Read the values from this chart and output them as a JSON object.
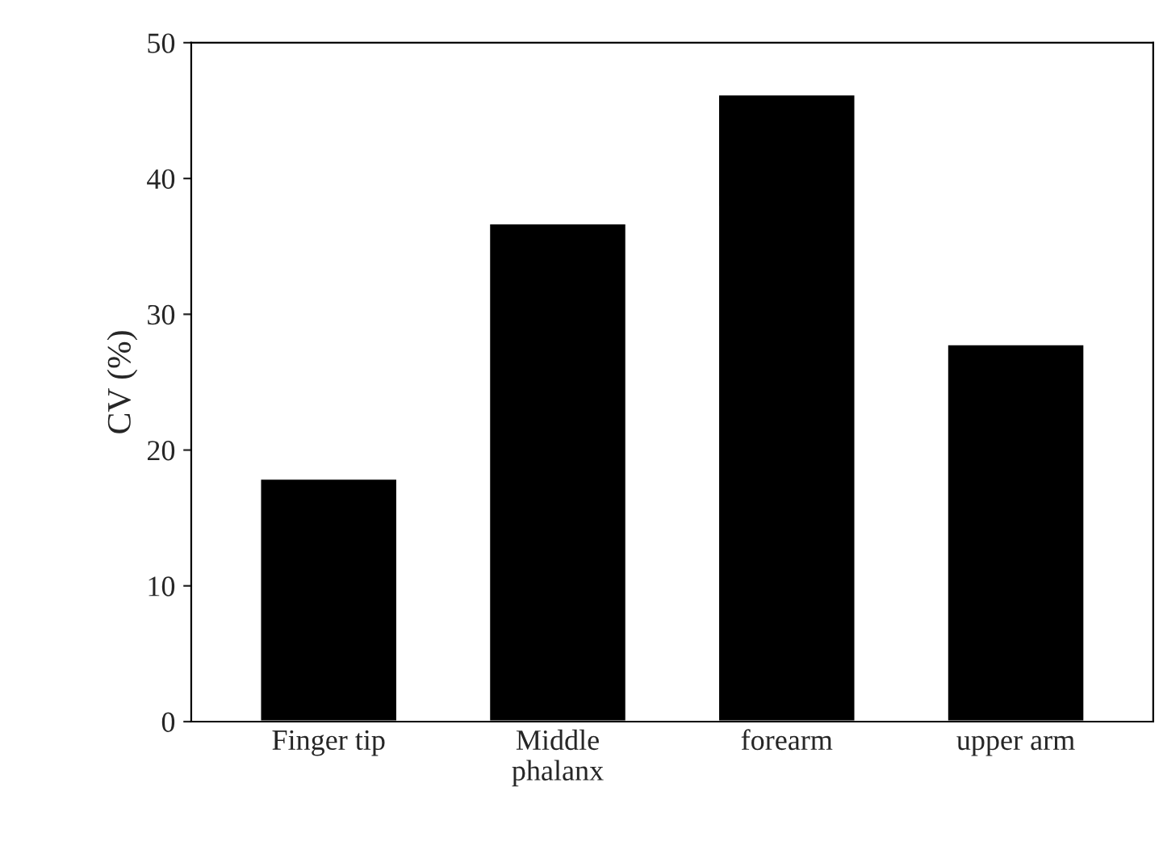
{
  "chart_data": {
    "type": "bar",
    "ylabel": "CV (%)",
    "categories": [
      "Finger tip",
      "Middle\nphalanx",
      "forearm",
      "upper arm"
    ],
    "values": [
      17.9,
      36.7,
      46.2,
      27.8
    ],
    "color": "#000000",
    "ylim": [
      0,
      50
    ],
    "yticks": [
      0,
      10,
      20,
      30,
      40,
      50
    ],
    "grid": false
  }
}
